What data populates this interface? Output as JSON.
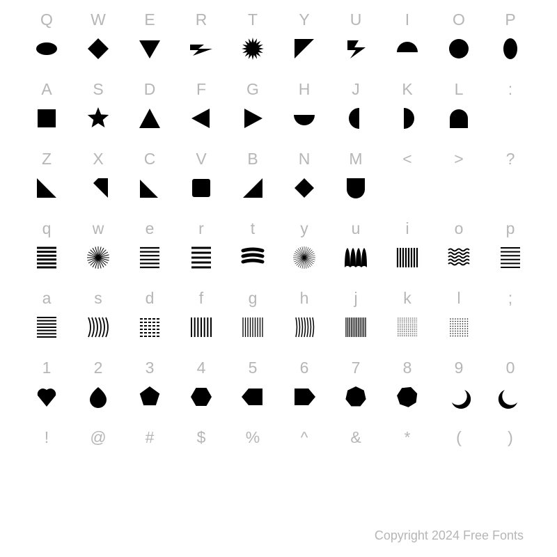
{
  "copyright": "Copyright 2024 Free Fonts",
  "label_color": "#b6b6b6",
  "glyph_color": "#000000",
  "background_color": "#ffffff",
  "label_fontsize": 23,
  "copyright_fontsize": 18,
  "rows": [
    {
      "labels": [
        "Q",
        "W",
        "E",
        "R",
        "T",
        "Y",
        "U",
        "I",
        "O",
        "P"
      ],
      "glyphs": [
        "ellipse-h",
        "diamond",
        "triangle-down",
        "lightning-left",
        "starburst",
        "triangle-ur",
        "lightning-right",
        "half-circle-top",
        "circle",
        "ellipse-v"
      ]
    },
    {
      "labels": [
        "A",
        "S",
        "D",
        "F",
        "G",
        "H",
        "J",
        "K",
        "L",
        ":"
      ],
      "glyphs": [
        "square",
        "star5",
        "triangle-up",
        "triangle-left",
        "triangle-right",
        "half-circle-bottom",
        "half-circle-left",
        "half-circle-right",
        "arch",
        "blank"
      ]
    },
    {
      "labels": [
        "Z",
        "X",
        "C",
        "V",
        "B",
        "N",
        "M",
        "<",
        ">",
        "?"
      ],
      "glyphs": [
        "triangle-bl",
        "triangle-br-notch",
        "triangle-bl2",
        "square-round",
        "triangle-bl3",
        "diamond-small",
        "shield",
        "blank",
        "blank",
        "blank"
      ]
    },
    {
      "labels": [
        "q",
        "w",
        "e",
        "r",
        "t",
        "y",
        "u",
        "i",
        "o",
        "p"
      ],
      "glyphs": [
        "lines-thick",
        "burst-lines",
        "lines-wavy1",
        "lines-mid",
        "brush-strokes",
        "burst-thin",
        "teeth",
        "vlines-thick",
        "waves",
        "lines-thin"
      ]
    },
    {
      "labels": [
        "a",
        "s",
        "d",
        "f",
        "g",
        "h",
        "j",
        "k",
        "l",
        ";"
      ],
      "glyphs": [
        "lines-6",
        "curves-right",
        "lines-dash",
        "vlines-6",
        "vlines-wavy",
        "vlines-curve",
        "vlines-dense",
        "hatch",
        "dots",
        "blank"
      ]
    },
    {
      "labels": [
        "1",
        "2",
        "3",
        "4",
        "5",
        "6",
        "7",
        "8",
        "9",
        "0"
      ],
      "glyphs": [
        "heart-drop",
        "drop",
        "pentagon",
        "hexagon-v",
        "tag-left",
        "tag-right",
        "heptagon",
        "heptagon2",
        "comma-shape",
        "comma-shape2"
      ]
    },
    {
      "labels": [
        "!",
        "@",
        "#",
        "$",
        "%",
        "^",
        "&",
        "*",
        "(",
        ")"
      ],
      "glyphs": [
        "blank",
        "blank",
        "blank",
        "blank",
        "blank",
        "blank",
        "blank",
        "blank",
        "blank",
        "blank"
      ]
    }
  ]
}
